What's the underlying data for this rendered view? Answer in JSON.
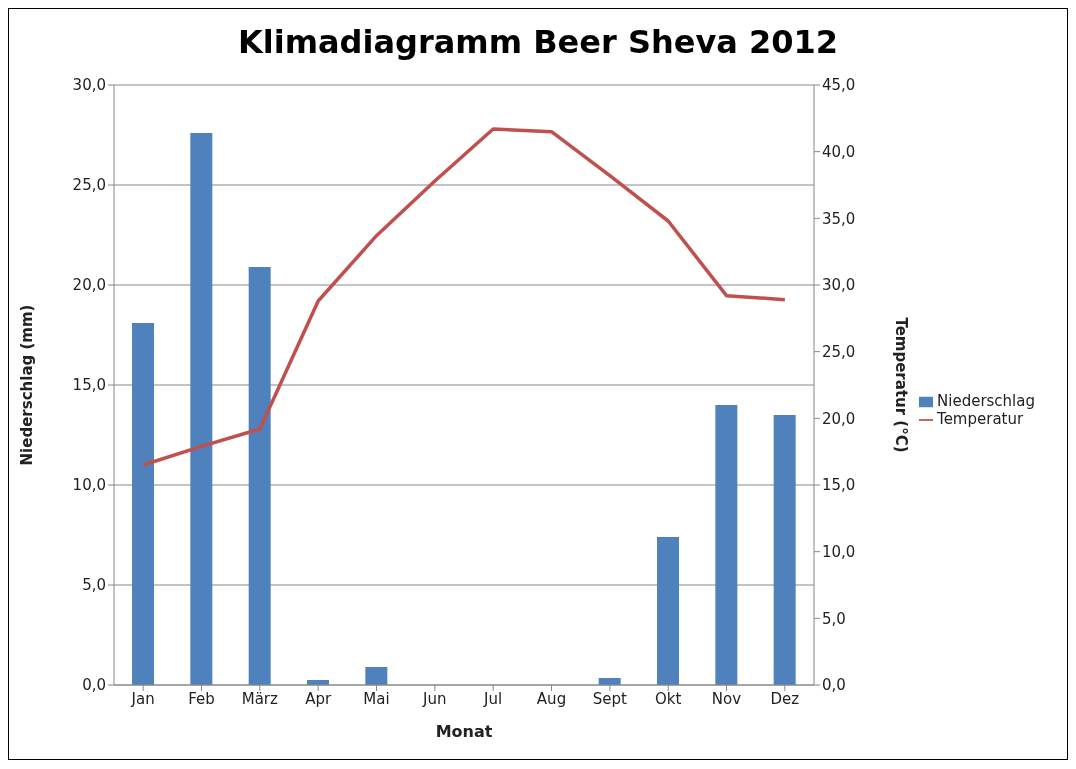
{
  "chart_data": {
    "type": "bar",
    "title": "Klimadiagramm Beer Sheva 2012",
    "xlabel": "Monat",
    "ylabel": "Niederschlag (mm)",
    "y2label": "Temperatur (°C)",
    "categories": [
      "Jan",
      "Feb",
      "März",
      "Apr",
      "Mai",
      "Jun",
      "Jul",
      "Aug",
      "Sept",
      "Okt",
      "Nov",
      "Dez"
    ],
    "series": [
      {
        "name": "Niederschlag",
        "color": "#4f81bd",
        "values": [
          18.1,
          27.6,
          20.9,
          0.25,
          0.9,
          0,
          0,
          0,
          0.35,
          7.4,
          14.0,
          13.5
        ]
      },
      {
        "name": "Temperatur",
        "type": "line",
        "axis": "y2",
        "color": "#c0504d",
        "values": [
          16.5,
          17.9,
          19.2,
          28.8,
          33.7,
          37.8,
          41.7,
          41.5,
          38.2,
          34.8,
          29.2,
          28.9
        ]
      }
    ],
    "ylim": [
      0,
      30
    ],
    "yticks": [
      {
        "value": 0,
        "label": "0,0"
      },
      {
        "value": 5,
        "label": "5,0"
      },
      {
        "value": 10,
        "label": "10,0"
      },
      {
        "value": 15,
        "label": "15,0"
      },
      {
        "value": 20,
        "label": "20,0"
      },
      {
        "value": 25,
        "label": "25,0"
      },
      {
        "value": 30,
        "label": "30,0"
      }
    ],
    "y2lim": [
      0,
      45
    ],
    "y2ticks": [
      {
        "value": 0,
        "label": "0,0"
      },
      {
        "value": 5,
        "label": "5,0"
      },
      {
        "value": 10,
        "label": "10,0"
      },
      {
        "value": 15,
        "label": "15,0"
      },
      {
        "value": 20,
        "label": "20,0"
      },
      {
        "value": 25,
        "label": "25,0"
      },
      {
        "value": 30,
        "label": "30,0"
      },
      {
        "value": 35,
        "label": "35,0"
      },
      {
        "value": 40,
        "label": "40,0"
      },
      {
        "value": 45,
        "label": "45,0"
      }
    ],
    "grid": "y",
    "legend": "right",
    "marker": "none",
    "line_style": "solid"
  }
}
